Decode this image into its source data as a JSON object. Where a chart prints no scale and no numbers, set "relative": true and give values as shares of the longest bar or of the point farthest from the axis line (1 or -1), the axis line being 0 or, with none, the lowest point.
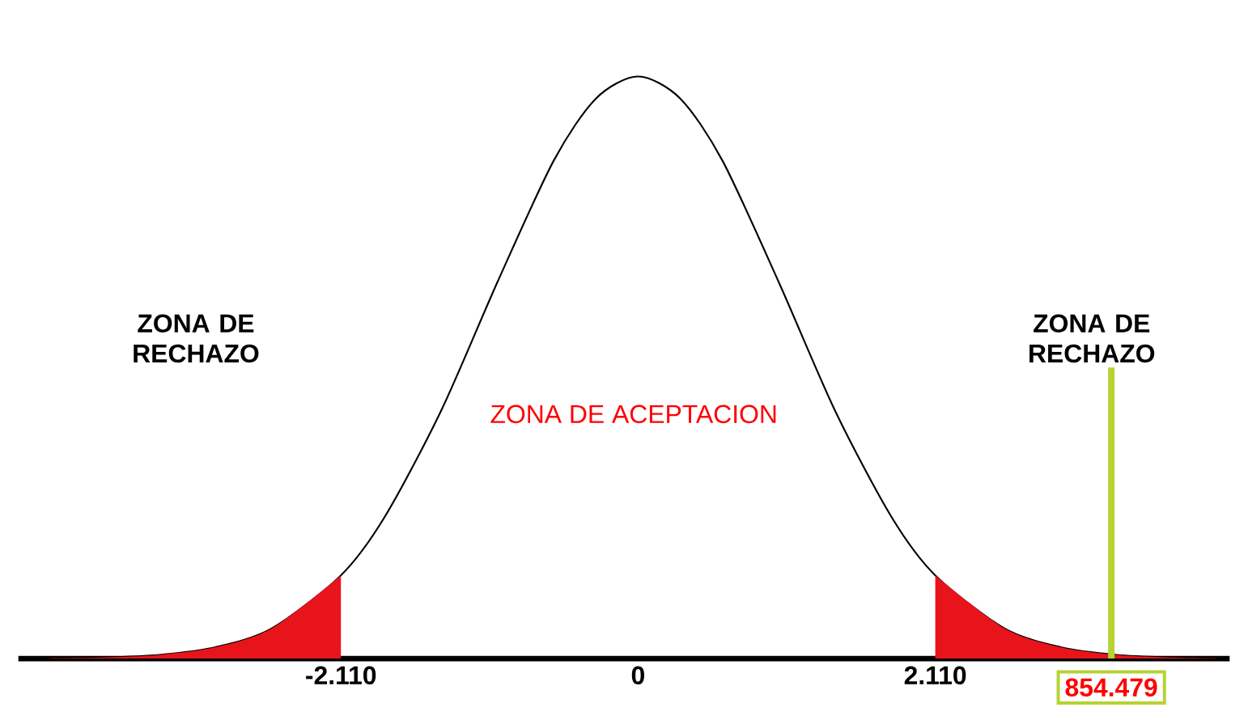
{
  "chart_data": {
    "type": "line",
    "relative": true,
    "series": [
      {
        "color": "#000000",
        "x": [
          -4.2,
          -3.8,
          -3.4,
          -3.0,
          -2.6,
          -2.11,
          -1.8,
          -1.4,
          -1.0,
          -0.6,
          -0.3,
          0,
          0.3,
          0.6,
          1.0,
          1.4,
          1.8,
          2.11,
          2.6,
          3.0,
          3.4,
          3.8,
          4.1
        ],
        "values": [
          0.0005,
          0.0018,
          0.0064,
          0.0196,
          0.052,
          0.143,
          0.243,
          0.425,
          0.646,
          0.855,
          0.962,
          1,
          0.962,
          0.855,
          0.646,
          0.425,
          0.243,
          0.143,
          0.052,
          0.0196,
          0.0064,
          0.0018,
          0.0006
        ]
      },
      {
        "type": "area",
        "color": "#e8141b",
        "x": [
          -4.2,
          -3.8,
          -3.4,
          -3.0,
          -2.6,
          -2.11
        ],
        "values": [
          0.0005,
          0.0018,
          0.0064,
          0.0196,
          0.052,
          0.143
        ]
      },
      {
        "type": "area",
        "color": "#e8141b",
        "x": [
          2.11,
          2.6,
          3.0,
          3.4,
          3.8,
          4.1
        ],
        "values": [
          0.143,
          0.052,
          0.0196,
          0.0064,
          0.0018,
          0.0006
        ]
      }
    ],
    "xlim": [
      -4.4,
      4.2
    ],
    "xticks": [
      {
        "value": -2.11,
        "label": "-2.110"
      },
      {
        "value": 0,
        "label": "0"
      },
      {
        "value": 2.11,
        "label": "2.110"
      }
    ],
    "annotations": [
      "ZONA DE RECHAZO",
      "ZONA DE RECHAZO",
      "ZONA DE ACEPTACION",
      "854.479"
    ]
  }
}
